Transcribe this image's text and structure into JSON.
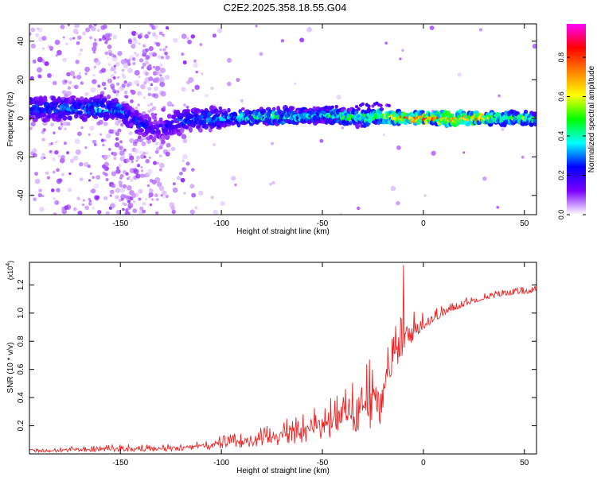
{
  "title": "C2E2.2025.358.18.55.G04",
  "chart_data": [
    {
      "type": "heatmap",
      "xlabel": "Height of straight line (km)",
      "ylabel": "Frequency (Hz)",
      "xlim": [
        -195,
        56
      ],
      "ylim": [
        -50,
        49
      ],
      "xticks": [
        -150,
        -100,
        -50,
        0,
        50
      ],
      "yticks": [
        -40,
        -20,
        0,
        20,
        40
      ],
      "colorbar": {
        "label": "Normalized spectral amplitude",
        "range": [
          0.0,
          0.97
        ],
        "ticks": [
          "0.0",
          "0.2",
          "0.4",
          "0.6",
          "0.8"
        ],
        "tick_values": [
          0.0,
          0.2,
          0.4,
          0.6,
          0.8
        ],
        "colormap": [
          "#ffffff",
          "#7b00ff",
          "#0000ff",
          "#00ffff",
          "#00ff00",
          "#ffff00",
          "#ff8000",
          "#ff0000",
          "#ff00ff"
        ]
      },
      "main_band": {
        "description_points_x": [
          -195,
          -150,
          -145,
          -140,
          -133,
          -128,
          -120,
          -100,
          -80,
          -60,
          -50,
          -40,
          -30,
          -20,
          -10,
          0,
          20,
          40,
          56
        ],
        "center_hz": [
          5,
          5,
          0,
          -3,
          -6,
          -5,
          -1,
          0,
          1,
          1,
          2,
          1,
          0,
          1,
          0,
          0,
          0,
          0,
          0
        ],
        "peak_amplitude": [
          0.3,
          0.35,
          0.25,
          0.3,
          0.2,
          0.2,
          0.3,
          0.35,
          0.45,
          0.45,
          0.4,
          0.5,
          0.5,
          0.6,
          0.8,
          0.85,
          0.9,
          0.55,
          0.5
        ]
      }
    },
    {
      "type": "line",
      "xlabel": "Height of straight line (km)",
      "ylabel": "SNR (10 * v/v)",
      "scale_label": "(x10",
      "scale_exponent": "4",
      "scale_close": ")",
      "xlim": [
        -195,
        56
      ],
      "ylim": [
        0,
        1.36
      ],
      "xticks": [
        -150,
        -100,
        -50,
        0,
        50
      ],
      "yticks": [
        "0.2",
        "0.4",
        "0.6",
        "0.8",
        "1.0",
        "1.2"
      ],
      "ytick_values": [
        0.2,
        0.4,
        0.6,
        0.8,
        1.0,
        1.2
      ],
      "color": "#ee2222",
      "series": [
        {
          "name": "SNR",
          "envelope_x": [
            -195,
            -150,
            -130,
            -110,
            -90,
            -70,
            -50,
            -40,
            -30,
            -20,
            -15,
            -10,
            -5,
            0,
            10,
            20,
            30,
            40,
            56
          ],
          "envelope_y": [
            0.03,
            0.05,
            0.05,
            0.08,
            0.12,
            0.18,
            0.28,
            0.35,
            0.45,
            0.62,
            0.75,
            0.85,
            0.92,
            0.96,
            1.02,
            1.08,
            1.12,
            1.15,
            1.17
          ],
          "noise": [
            0.01,
            0.03,
            0.03,
            0.04,
            0.06,
            0.1,
            0.16,
            0.22,
            0.28,
            0.3,
            0.28,
            0.25,
            0.18,
            0.12,
            0.06,
            0.05,
            0.04,
            0.04,
            0.04
          ],
          "peak": {
            "x": -10,
            "y": 1.34
          }
        }
      ]
    }
  ]
}
